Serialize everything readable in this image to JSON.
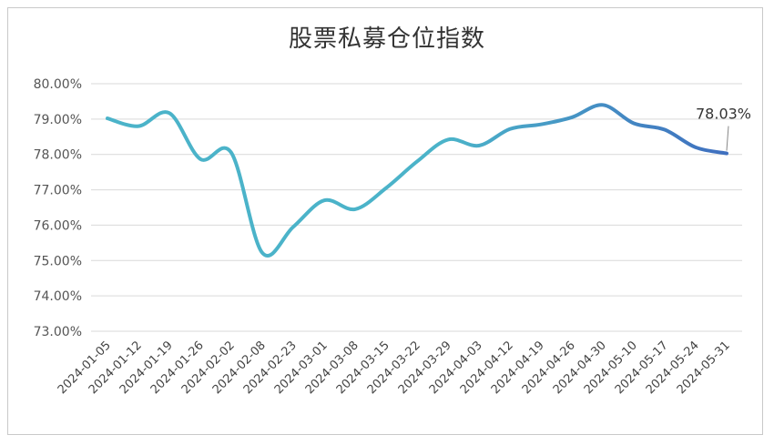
{
  "chart_data": {
    "type": "line",
    "title": "股票私募仓位指数",
    "xlabel": "",
    "ylabel": "",
    "ylim": [
      73,
      80
    ],
    "yticks": [
      "80.00%",
      "79.00%",
      "78.00%",
      "77.00%",
      "76.00%",
      "75.00%",
      "74.00%",
      "73.00%"
    ],
    "grid": true,
    "legend": "none",
    "categories": [
      "2024-01-05",
      "2024-01-12",
      "2024-01-19",
      "2024-01-26",
      "2024-02-02",
      "2024-02-08",
      "2024-02-23",
      "2024-03-01",
      "2024-03-08",
      "2024-03-15",
      "2024-03-22",
      "2024-03-29",
      "2024-04-03",
      "2024-04-12",
      "2024-04-19",
      "2024-04-26",
      "2024-04-30",
      "2024-05-10",
      "2024-05-17",
      "2024-05-24",
      "2024-05-31"
    ],
    "series": [
      {
        "values": [
          79.02,
          78.8,
          79.17,
          77.87,
          78.05,
          75.22,
          75.95,
          76.7,
          76.45,
          77.05,
          77.8,
          78.42,
          78.25,
          78.72,
          78.85,
          79.05,
          79.4,
          78.88,
          78.7,
          78.2,
          78.03
        ]
      }
    ],
    "annotation": {
      "label": "78.03%",
      "index": 20
    },
    "colors": {
      "line_start": "#4bb3c9",
      "line_end": "#3f6fbf",
      "grid": "#d9d9d9"
    }
  }
}
